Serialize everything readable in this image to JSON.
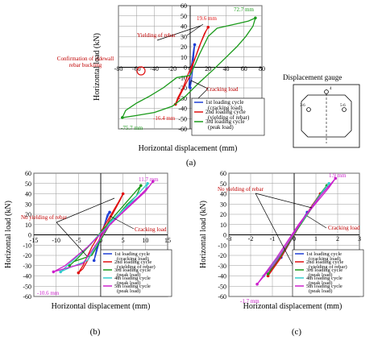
{
  "chart_data": [
    {
      "id": "a",
      "type": "line",
      "caption": "(a)",
      "xlabel": "Horizontal displacement (mm)",
      "ylabel": "Horizontal load (kN)",
      "xlim": [
        -80,
        80
      ],
      "ylim": [
        -60,
        60
      ],
      "xticks": [
        -80,
        -60,
        -40,
        -20,
        0,
        20,
        40,
        60,
        80
      ],
      "yticks": [
        -60,
        -50,
        -40,
        -30,
        -20,
        -10,
        0,
        10,
        20,
        30,
        40,
        50,
        60
      ],
      "grid": true,
      "legend_position": "bottom-right",
      "series": [
        {
          "name": "1st loading cycle (cracking load)",
          "color": "#1f3fd6",
          "points": [
            [
              0,
              -20
            ],
            [
              1.5,
              -12
            ],
            [
              3,
              0
            ],
            [
              4,
              12
            ],
            [
              5,
              22
            ],
            [
              4,
              18
            ],
            [
              2,
              5
            ],
            [
              0,
              -5
            ],
            [
              -1,
              -14
            ],
            [
              -1.5,
              -20
            ],
            [
              -1,
              -17
            ],
            [
              0,
              -10
            ]
          ]
        },
        {
          "name": "2nd loading cycle (yielding of rebar)",
          "color": "#e01010",
          "points": [
            [
              0,
              -6
            ],
            [
              4,
              5
            ],
            [
              10,
              20
            ],
            [
              16,
              33
            ],
            [
              20,
              39
            ],
            [
              18,
              36
            ],
            [
              12,
              24
            ],
            [
              6,
              10
            ],
            [
              -2,
              -6
            ],
            [
              -8,
              -20
            ],
            [
              -14,
              -30
            ],
            [
              -16.4,
              -36
            ],
            [
              -14,
              -32
            ],
            [
              -6,
              -18
            ],
            [
              0,
              -8
            ]
          ]
        },
        {
          "name": "3rd loading cycle (peak load)",
          "color": "#1a9a1a",
          "points": [
            [
              0,
              -8
            ],
            [
              10,
              12
            ],
            [
              20,
              30
            ],
            [
              30,
              38
            ],
            [
              40,
              40
            ],
            [
              55,
              43
            ],
            [
              65,
              45
            ],
            [
              72.7,
              48
            ],
            [
              70,
              40
            ],
            [
              62,
              30
            ],
            [
              52,
              20
            ],
            [
              38,
              8
            ],
            [
              25,
              -3
            ],
            [
              10,
              -15
            ],
            [
              -5,
              -28
            ],
            [
              -20,
              -38
            ],
            [
              -40,
              -44
            ],
            [
              -60,
              -47
            ],
            [
              -75.7,
              -49
            ],
            [
              -72,
              -42
            ],
            [
              -60,
              -35
            ],
            [
              -45,
              -28
            ],
            [
              -30,
              -20
            ],
            [
              -15,
              -10
            ],
            [
              0,
              -8
            ]
          ]
        }
      ],
      "annotations": [
        {
          "text": "72.7 mm",
          "color": "#1a9a1a"
        },
        {
          "text": "19.6 mm",
          "color": "#e01010"
        },
        {
          "text": "Yielding of rebar",
          "color": "#c00000"
        },
        {
          "text": "Confirmation of sidewall rebar buckling",
          "color": "#c00000"
        },
        {
          "text": "Cracking load",
          "color": "#c00000"
        },
        {
          "text": "-16.4 mm",
          "color": "#e01010"
        },
        {
          "text": "-75.7 mm",
          "color": "#1a9a1a"
        }
      ]
    },
    {
      "id": "b",
      "type": "line",
      "caption": "(b)",
      "xlabel": "Horizontal displacement (mm)",
      "ylabel": "Horizontal load (kN)",
      "xlim": [
        -15,
        15
      ],
      "ylim": [
        -60,
        60
      ],
      "xticks": [
        -15,
        -10,
        -5,
        0,
        5,
        10,
        15
      ],
      "yticks": [
        -60,
        -50,
        -40,
        -30,
        -20,
        -10,
        0,
        10,
        20,
        30,
        40,
        50,
        60
      ],
      "grid": true,
      "legend_position": "bottom-right",
      "series": [
        {
          "name": "1st loading cycle (cracking load)",
          "color": "#1f3fd6",
          "points": [
            [
              -1.5,
              -25
            ],
            [
              -0.5,
              -10
            ],
            [
              0.5,
              5
            ],
            [
              1.5,
              20
            ],
            [
              2,
              22
            ],
            [
              1,
              12
            ],
            [
              0,
              0
            ],
            [
              -1,
              -15
            ],
            [
              -1.5,
              -25
            ]
          ]
        },
        {
          "name": "2nd loading cycle (yielding of rebar)",
          "color": "#e01010",
          "points": [
            [
              -1,
              -10
            ],
            [
              2,
              15
            ],
            [
              4.5,
              35
            ],
            [
              5,
              40
            ],
            [
              4,
              32
            ],
            [
              1,
              10
            ],
            [
              -2,
              -12
            ],
            [
              -4,
              -30
            ],
            [
              -5,
              -37
            ],
            [
              -4,
              -33
            ],
            [
              -1,
              -10
            ]
          ]
        },
        {
          "name": "3rd loading cycle (peak load)",
          "color": "#1a9a1a",
          "points": [
            [
              -2,
              -20
            ],
            [
              2,
              10
            ],
            [
              6,
              30
            ],
            [
              8,
              38
            ],
            [
              9,
              48
            ],
            [
              7,
              38
            ],
            [
              3,
              18
            ],
            [
              -2,
              -8
            ],
            [
              -5,
              -22
            ],
            [
              -7,
              -30
            ],
            [
              -6,
              -26
            ],
            [
              -2,
              -20
            ]
          ]
        },
        {
          "name": "4th loading cycle (peak load)",
          "color": "#33cccc",
          "points": [
            [
              -3,
              -25
            ],
            [
              2,
              12
            ],
            [
              7,
              32
            ],
            [
              10,
              42
            ],
            [
              10.5,
              50
            ],
            [
              8,
              38
            ],
            [
              3,
              15
            ],
            [
              -3,
              -12
            ],
            [
              -8,
              -32
            ],
            [
              -9,
              -36
            ],
            [
              -7,
              -32
            ],
            [
              -3,
              -25
            ]
          ]
        },
        {
          "name": "5th loading cycle (peak load)",
          "color": "#cc22cc",
          "points": [
            [
              -4,
              -28
            ],
            [
              2,
              10
            ],
            [
              8,
              35
            ],
            [
              11,
              48
            ],
            [
              11.7,
              52
            ],
            [
              10,
              42
            ],
            [
              4,
              18
            ],
            [
              -3,
              -12
            ],
            [
              -8,
              -30
            ],
            [
              -10.6,
              -36
            ],
            [
              -9,
              -34
            ],
            [
              -4,
              -28
            ]
          ]
        }
      ],
      "annotations": [
        {
          "text": "11.7 mm",
          "color": "#cc22cc"
        },
        {
          "text": "No yielding of rebar",
          "color": "#c00000"
        },
        {
          "text": "Cracking load",
          "color": "#c00000"
        },
        {
          "text": "-10.6 mm",
          "color": "#cc22cc"
        }
      ]
    },
    {
      "id": "c",
      "type": "line",
      "caption": "(c)",
      "xlabel": "Horizontal displacement (mm)",
      "ylabel": "Horizontal load (kN)",
      "xlim": [
        -3,
        3
      ],
      "ylim": [
        -60,
        60
      ],
      "xticks": [
        -3,
        -2,
        -1,
        0,
        1,
        2,
        3
      ],
      "yticks": [
        -60,
        -50,
        -40,
        -30,
        -20,
        -10,
        0,
        10,
        20,
        30,
        40,
        50,
        60
      ],
      "grid": true,
      "legend_position": "bottom-right",
      "series": [
        {
          "name": "1st loading cycle (cracking load)",
          "color": "#1f3fd6",
          "points": [
            [
              -0.4,
              -15
            ],
            [
              0,
              0
            ],
            [
              0.4,
              15
            ],
            [
              0.6,
              22
            ],
            [
              0.3,
              12
            ],
            [
              -0.2,
              -5
            ],
            [
              -0.6,
              -22
            ],
            [
              -0.4,
              -15
            ]
          ]
        },
        {
          "name": "2nd loading cycle (yielding of rebar)",
          "color": "#e01010",
          "points": [
            [
              -1.2,
              -40
            ],
            [
              -0.6,
              -20
            ],
            [
              0,
              0
            ],
            [
              0.8,
              28
            ],
            [
              1.2,
              40
            ],
            [
              1.0,
              34
            ],
            [
              0.2,
              8
            ],
            [
              -0.6,
              -22
            ],
            [
              -1.2,
              -40
            ]
          ]
        },
        {
          "name": "3rd loading cycle (peak load)",
          "color": "#1a9a1a",
          "points": [
            [
              -1.2,
              -38
            ],
            [
              -0.5,
              -15
            ],
            [
              0.3,
              10
            ],
            [
              1.0,
              32
            ],
            [
              1.5,
              48
            ],
            [
              1.2,
              40
            ],
            [
              0.4,
              14
            ],
            [
              -0.6,
              -20
            ],
            [
              -1.2,
              -38
            ]
          ]
        },
        {
          "name": "4th loading cycle (peak load)",
          "color": "#33cccc",
          "points": [
            [
              -1.4,
              -40
            ],
            [
              -0.6,
              -18
            ],
            [
              0.2,
              8
            ],
            [
              1.1,
              35
            ],
            [
              1.6,
              50
            ],
            [
              1.3,
              42
            ],
            [
              0.4,
              15
            ],
            [
              -0.8,
              -25
            ],
            [
              -1.4,
              -40
            ]
          ]
        },
        {
          "name": "5th loading cycle (peak load)",
          "color": "#cc22cc",
          "points": [
            [
              -1.7,
              -48
            ],
            [
              -0.8,
              -22
            ],
            [
              0.2,
              10
            ],
            [
              1.2,
              38
            ],
            [
              1.9,
              55
            ],
            [
              1.6,
              46
            ],
            [
              0.5,
              18
            ],
            [
              -0.9,
              -28
            ],
            [
              -1.7,
              -48
            ]
          ]
        }
      ],
      "annotations": [
        {
          "text": "1.9 mm",
          "color": "#cc22cc"
        },
        {
          "text": "No yielding of rebar",
          "color": "#c00000"
        },
        {
          "text": "Cracking load",
          "color": "#c00000"
        },
        {
          "text": "-1.7 mm",
          "color": "#cc22cc"
        }
      ]
    }
  ],
  "gauge_diagram": {
    "title": "Displacement gauge",
    "labels": [
      "4",
      "3-6",
      "5-6"
    ]
  }
}
